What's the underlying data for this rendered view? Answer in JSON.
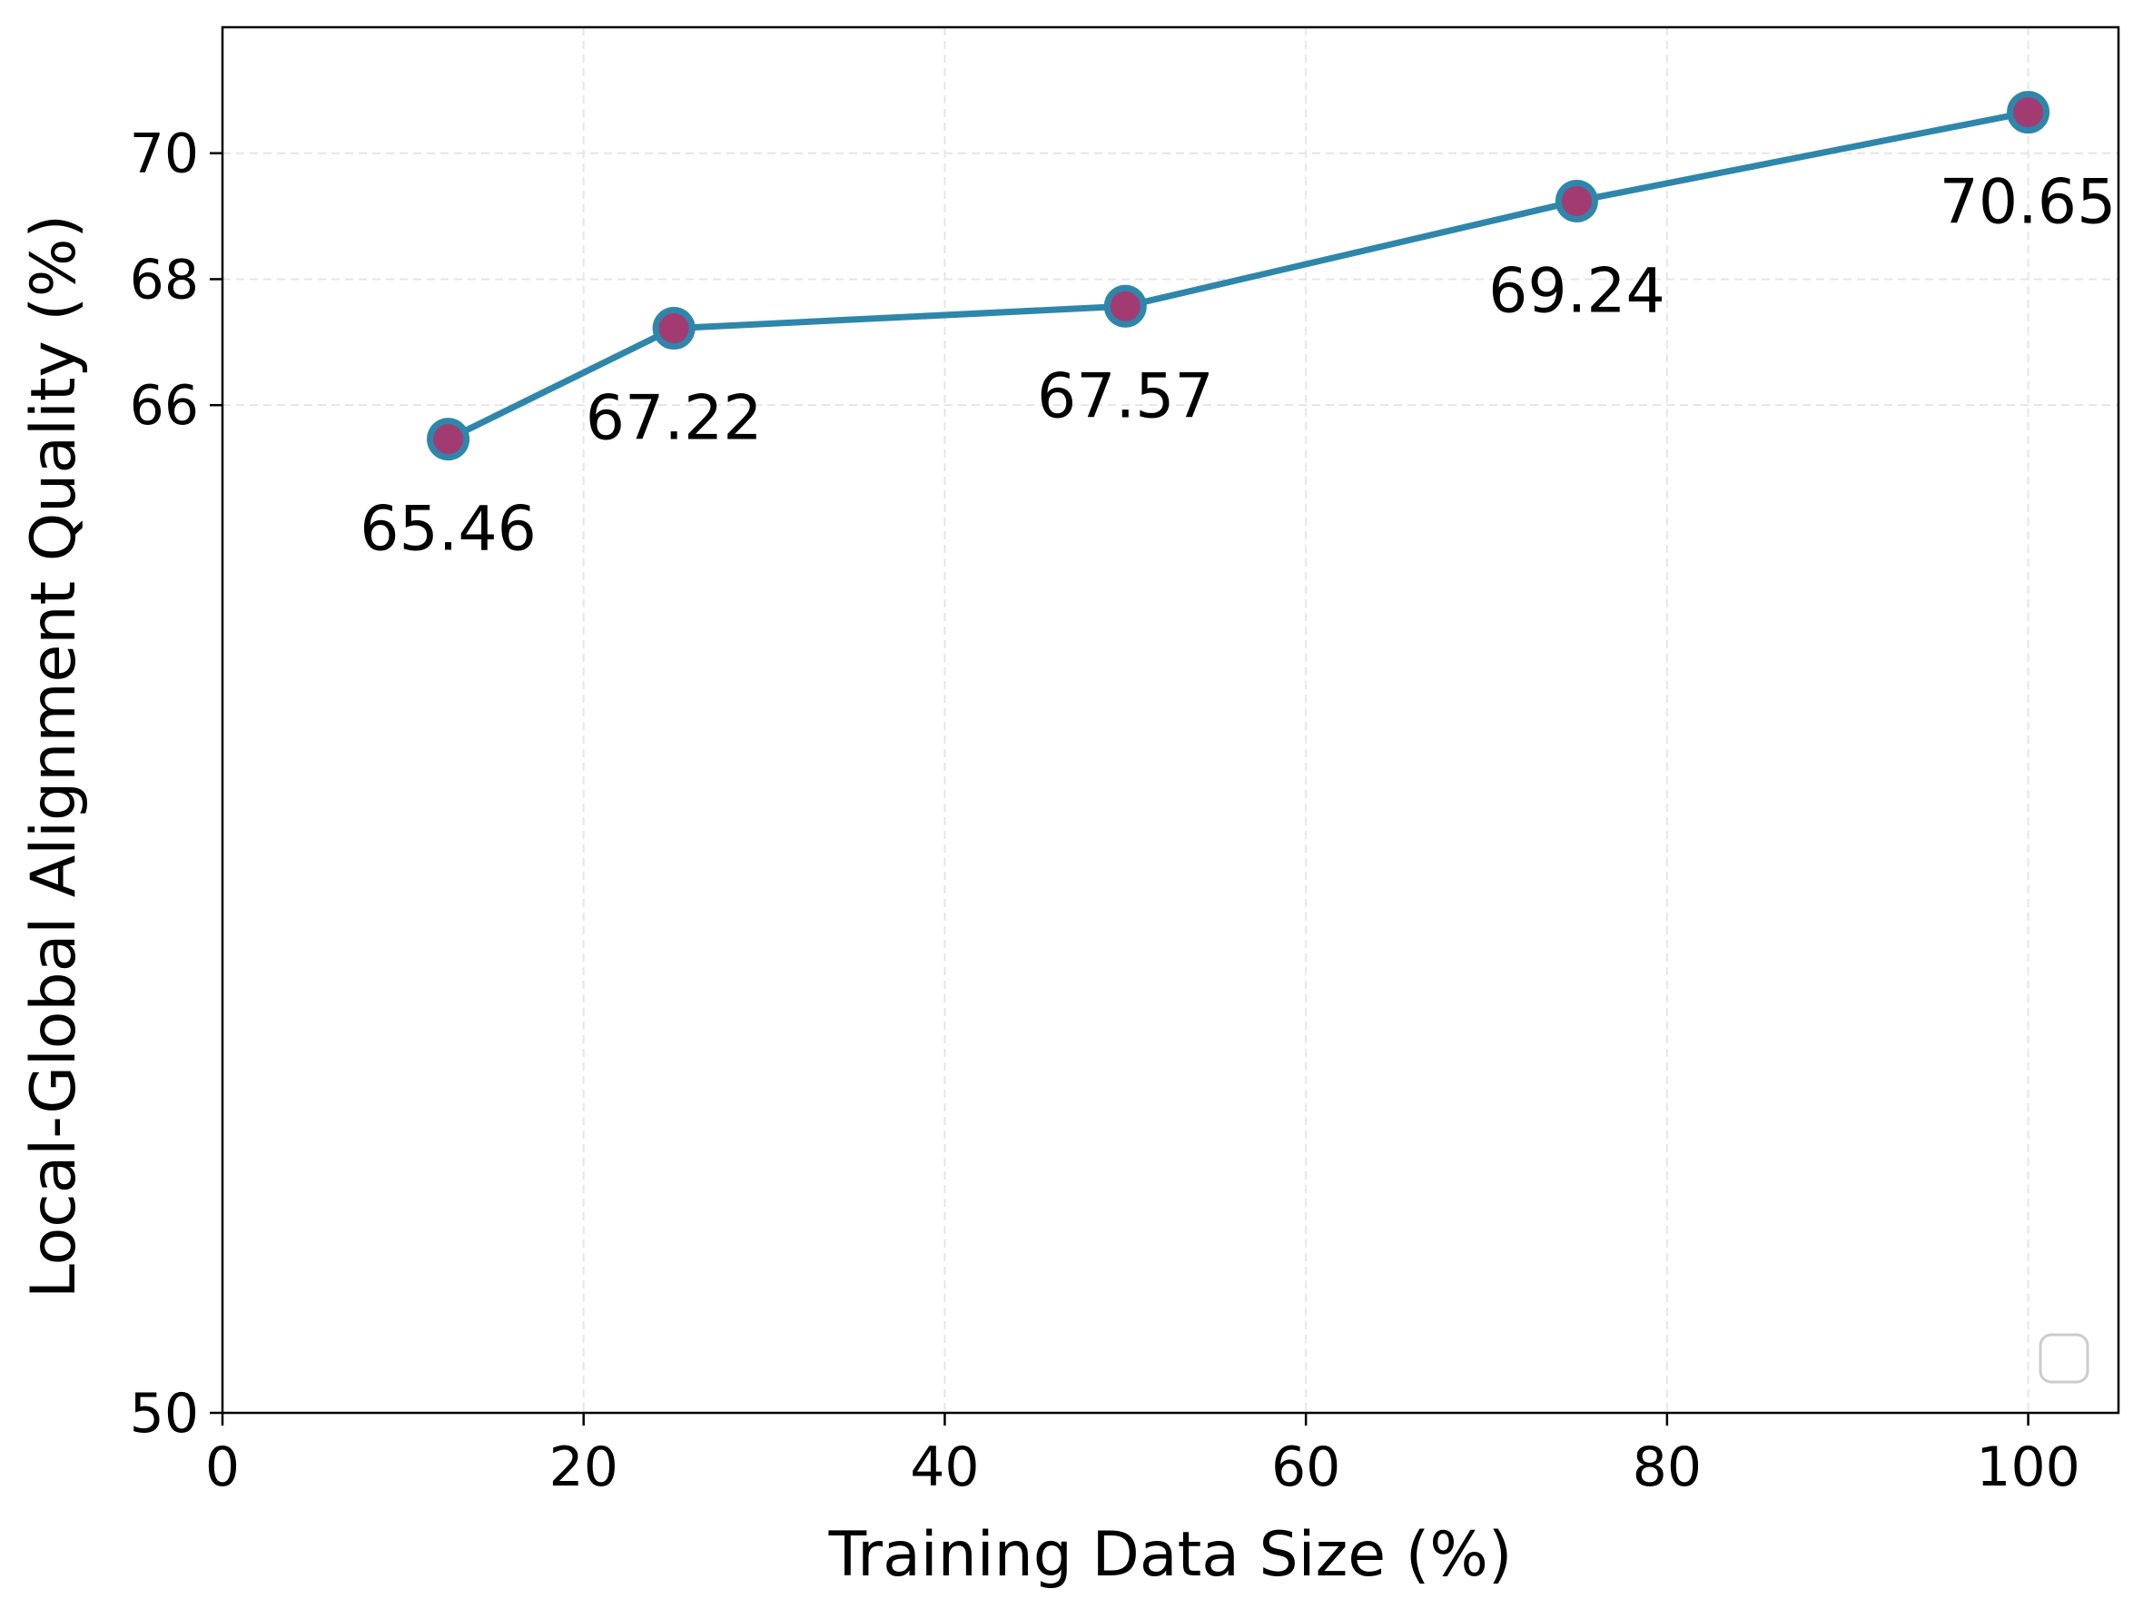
{
  "chart_data": {
    "type": "line",
    "title": "",
    "xlabel": "Training Data Size (%)",
    "ylabel": "Local-Global Alignment Quality (%)",
    "xlim": [
      0,
      105
    ],
    "ylim": [
      50,
      72
    ],
    "xticks": [
      "0",
      "20",
      "40",
      "60",
      "80",
      "100"
    ],
    "yticks": [
      "50",
      "66",
      "68",
      "70"
    ],
    "grid": true,
    "legend": "lower-right, empty",
    "series": [
      {
        "name": "Local-Global Alignment Quality",
        "x": [
          12.5,
          25,
          50,
          75,
          100
        ],
        "y": [
          65.46,
          67.22,
          67.57,
          69.24,
          70.65
        ],
        "labels": [
          "65.46",
          "67.22",
          "67.57",
          "69.24",
          "70.65"
        ],
        "line_color": "#2e86ab",
        "marker_color": "#a23b72"
      }
    ]
  }
}
